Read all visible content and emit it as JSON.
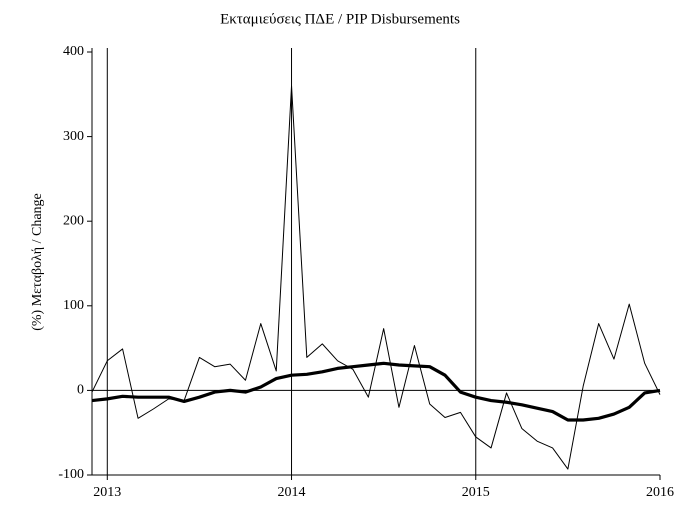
{
  "chart_data": {
    "type": "line",
    "title": "Εκταμιεύσεις ΠΔΕ / PIP Disbursements",
    "ylabel": "(%) Μεταβολή / Change",
    "x": [
      2012.917,
      2013,
      2013.083,
      2013.167,
      2013.25,
      2013.333,
      2013.417,
      2013.5,
      2013.583,
      2013.667,
      2013.75,
      2013.833,
      2013.917,
      2014,
      2014.083,
      2014.167,
      2014.25,
      2014.333,
      2014.417,
      2014.5,
      2014.583,
      2014.667,
      2014.75,
      2014.833,
      2014.917,
      2015,
      2015.083,
      2015.167,
      2015.25,
      2015.333,
      2015.417,
      2015.5,
      2015.583,
      2015.667,
      2015.75,
      2015.833,
      2015.917,
      2016
    ],
    "series": [
      {
        "color": "#000000",
        "line_width": 1,
        "values": [
          -2,
          35,
          49,
          -33,
          -22,
          -10,
          -12,
          39,
          28,
          31,
          12,
          79,
          23,
          360,
          39,
          55,
          35,
          25,
          -8,
          73,
          -20,
          53,
          -16,
          -32,
          -26,
          -55,
          -68,
          -3,
          -45,
          -60,
          -68,
          -93,
          5,
          79,
          37,
          102,
          32,
          -5
        ]
      },
      {
        "color": "#000000",
        "line_width": 3.2,
        "values": [
          -12,
          -10,
          -7,
          -8,
          -8,
          -8,
          -13,
          -8,
          -2,
          0,
          -2,
          4,
          14,
          18,
          19,
          22,
          26,
          28,
          30,
          32,
          30,
          29,
          28,
          18,
          -2,
          -8,
          -12,
          -14,
          -17,
          -21,
          -25,
          -35,
          -35,
          -33,
          -28,
          -20,
          -3,
          0
        ]
      }
    ],
    "xlim": [
      2012.917,
      2016
    ],
    "xticks": [
      2013,
      2014,
      2015,
      2016
    ],
    "ylim": [
      -100,
      400
    ],
    "yticks": [
      -100,
      0,
      100,
      200,
      300,
      400
    ],
    "x_grid": true,
    "zero_line": true
  }
}
